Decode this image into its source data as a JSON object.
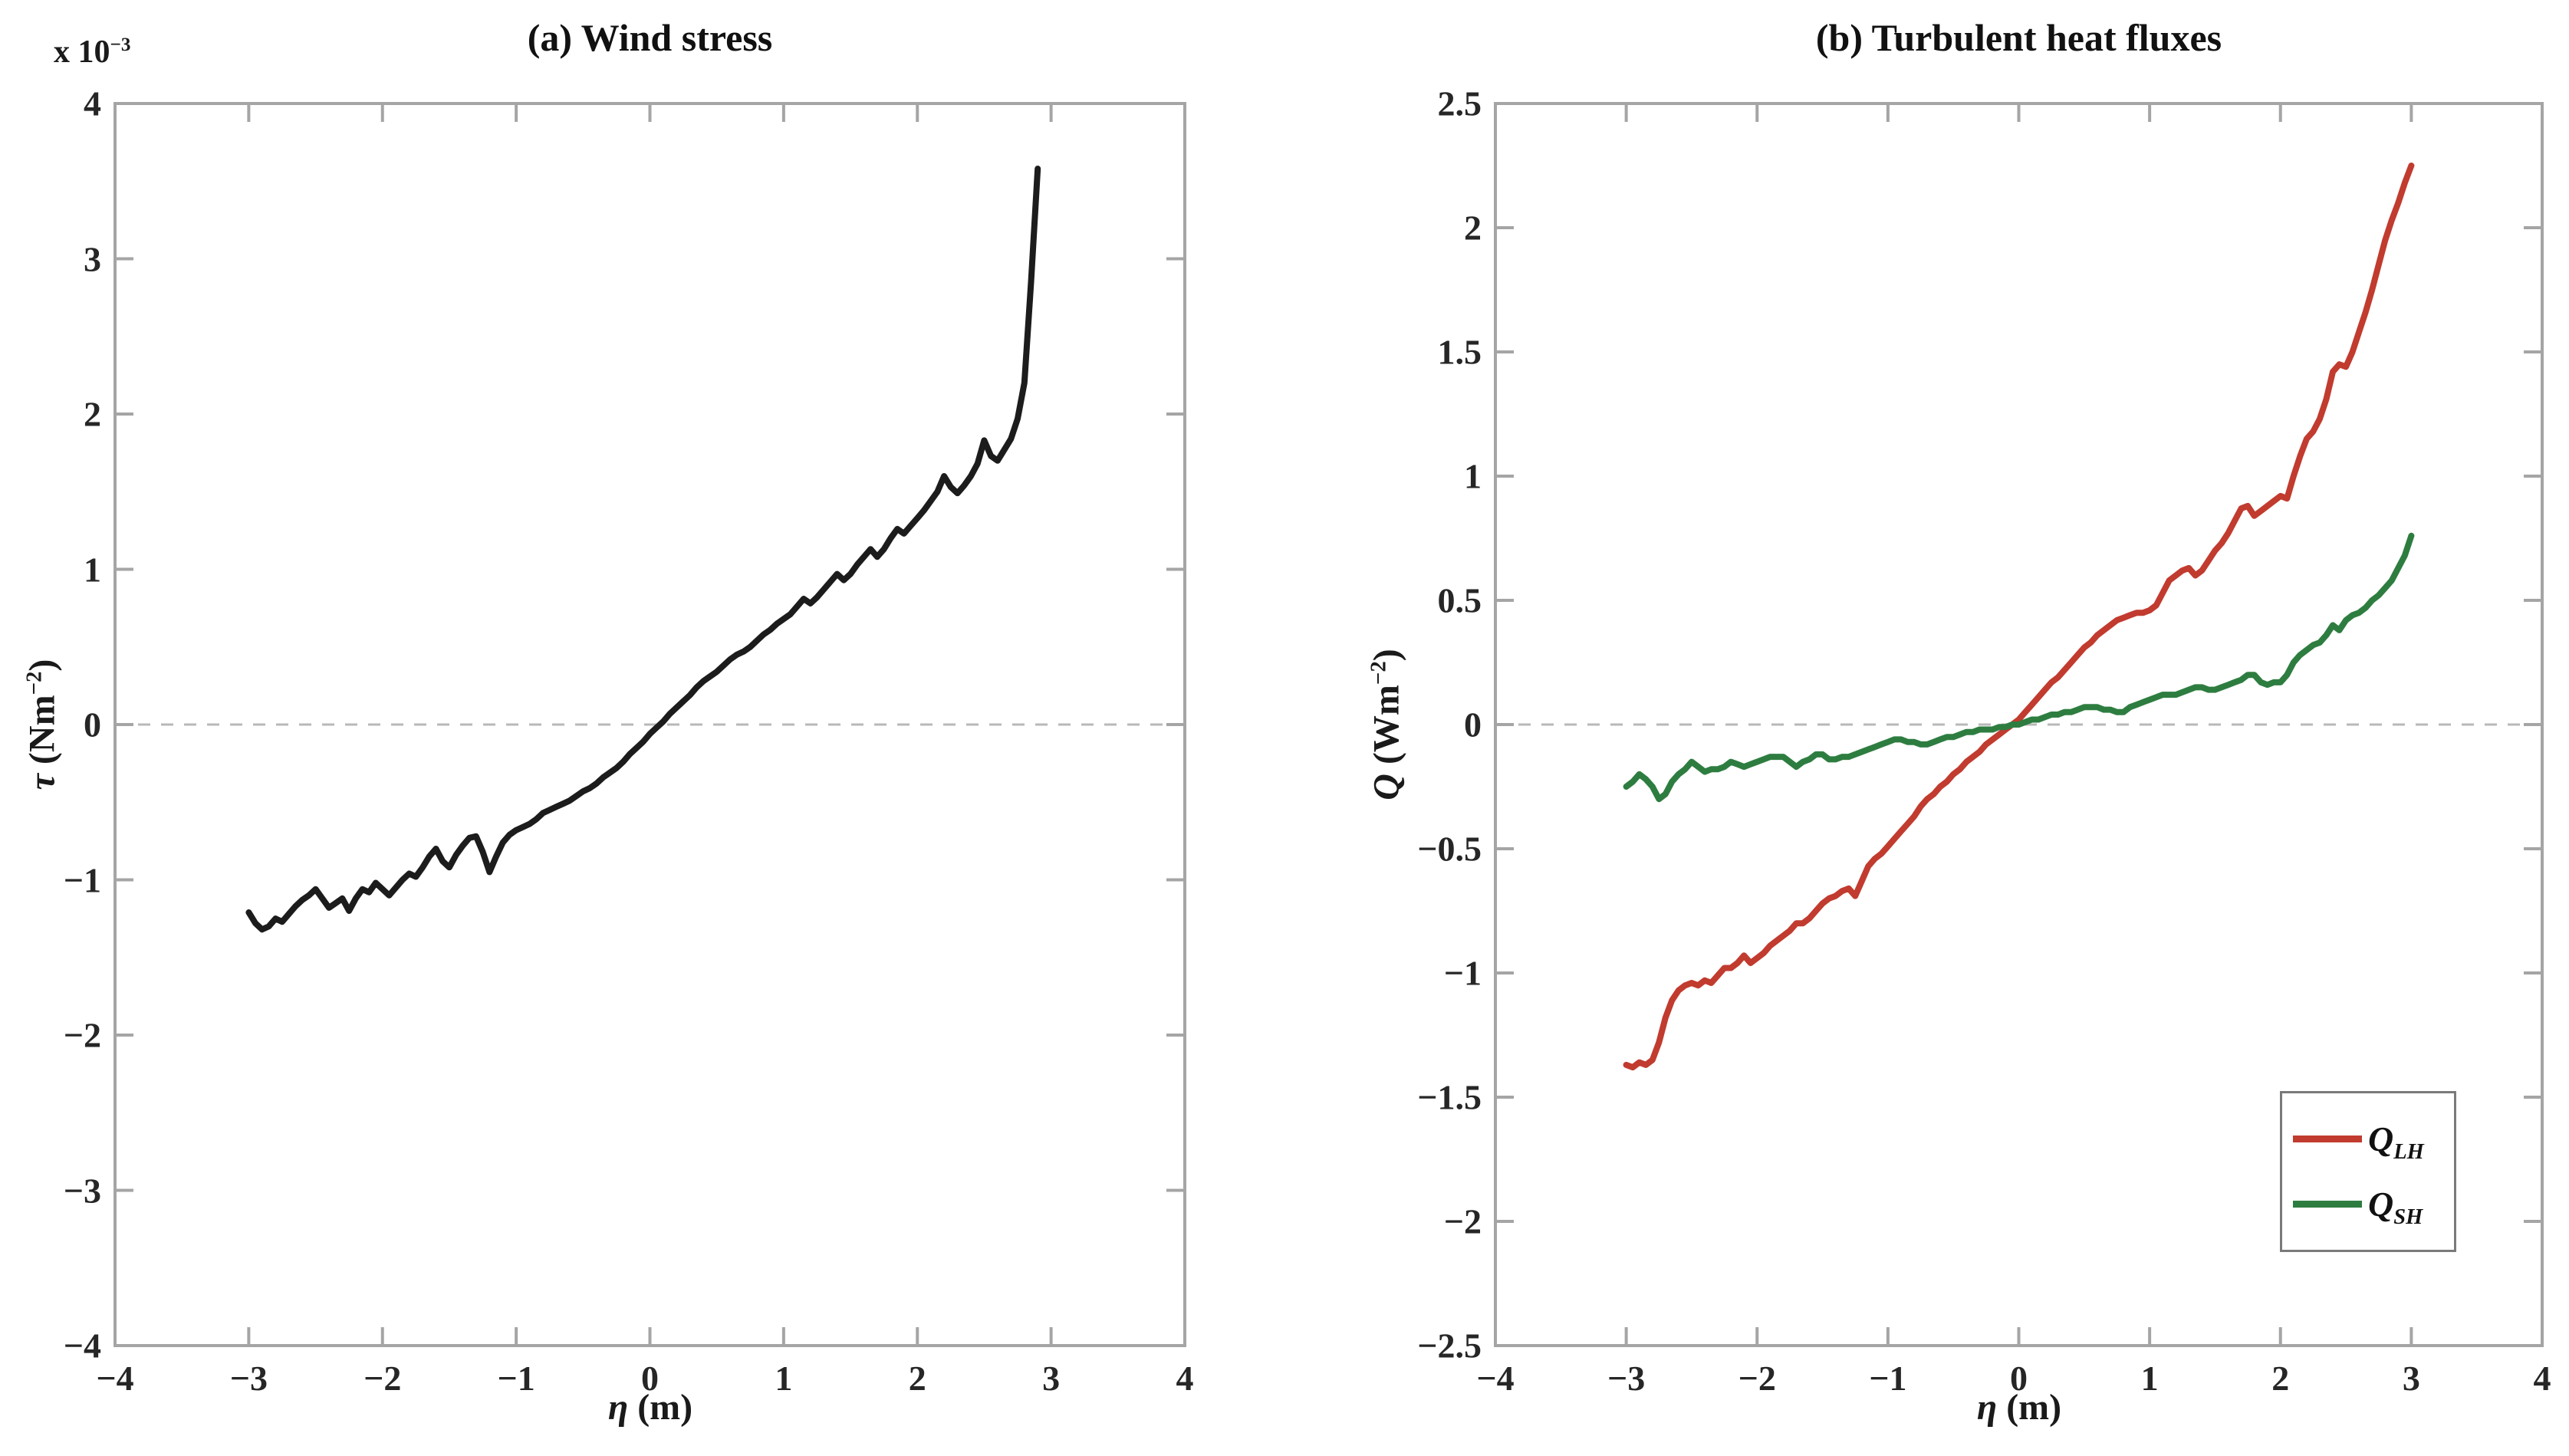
{
  "figure_background": "#ffffff",
  "axis_color": "#a5a5a5",
  "tick_label_color": "#262626",
  "zero_line_color": "#b8b8b8",
  "chart_data": [
    {
      "type": "line",
      "title": "(a) Wind stress",
      "xlabel": {
        "symbol": "η",
        "unit": " (m)"
      },
      "ylabel": {
        "symbol": "τ",
        "unit_pre": " (Nm",
        "unit_sup": "−2",
        "unit_post": ")"
      },
      "y_scale_label": {
        "pre": "x 10",
        "sup": "−3"
      },
      "xlim": [
        -4,
        4
      ],
      "ylim": [
        -4,
        4
      ],
      "grid": false,
      "zero_line": true,
      "xticks": [
        -4,
        -3,
        -2,
        -1,
        0,
        1,
        2,
        3,
        4
      ],
      "xtick_labels": [
        "−4",
        "−3",
        "−2",
        "−1",
        "0",
        "1",
        "2",
        "3",
        "4"
      ],
      "yticks": [
        -4,
        -3,
        -2,
        -1,
        0,
        1,
        2,
        3,
        4
      ],
      "ytick_labels": [
        "−4",
        "−3",
        "−2",
        "−1",
        "0",
        "1",
        "2",
        "3",
        "4"
      ],
      "series": [
        {
          "name": "tau",
          "color": "#1c1c1c",
          "line_width": 8,
          "x_start": -3.0,
          "x_step": 0.05,
          "x_end": 2.9,
          "values": [
            -1.21,
            -1.28,
            -1.32,
            -1.3,
            -1.25,
            -1.27,
            -1.22,
            -1.17,
            -1.13,
            -1.1,
            -1.06,
            -1.12,
            -1.18,
            -1.15,
            -1.12,
            -1.2,
            -1.12,
            -1.06,
            -1.08,
            -1.02,
            -1.06,
            -1.1,
            -1.05,
            -1.0,
            -0.96,
            -0.98,
            -0.92,
            -0.85,
            -0.8,
            -0.88,
            -0.92,
            -0.84,
            -0.78,
            -0.73,
            -0.72,
            -0.82,
            -0.95,
            -0.85,
            -0.76,
            -0.71,
            -0.68,
            -0.66,
            -0.64,
            -0.61,
            -0.57,
            -0.55,
            -0.53,
            -0.51,
            -0.49,
            -0.46,
            -0.43,
            -0.41,
            -0.38,
            -0.34,
            -0.31,
            -0.28,
            -0.24,
            -0.19,
            -0.15,
            -0.11,
            -0.06,
            -0.02,
            0.02,
            0.07,
            0.11,
            0.15,
            0.19,
            0.24,
            0.28,
            0.31,
            0.34,
            0.38,
            0.42,
            0.45,
            0.47,
            0.5,
            0.54,
            0.58,
            0.61,
            0.65,
            0.68,
            0.71,
            0.76,
            0.81,
            0.78,
            0.82,
            0.87,
            0.92,
            0.97,
            0.93,
            0.97,
            1.03,
            1.08,
            1.13,
            1.08,
            1.13,
            1.2,
            1.26,
            1.23,
            1.28,
            1.33,
            1.38,
            1.44,
            1.5,
            1.6,
            1.53,
            1.49,
            1.54,
            1.6,
            1.68,
            1.83,
            1.73,
            1.7,
            1.77,
            1.84,
            1.97,
            2.2,
            2.85,
            3.58
          ]
        }
      ]
    },
    {
      "type": "line",
      "title": "(b) Turbulent heat fluxes",
      "xlabel": {
        "symbol": "η",
        "unit": " (m)"
      },
      "ylabel": {
        "symbol": "Q",
        "unit_pre": " (Wm",
        "unit_sup": "−2",
        "unit_post": ")"
      },
      "xlim": [
        -4,
        4
      ],
      "ylim": [
        -2.5,
        2.5
      ],
      "grid": false,
      "zero_line": true,
      "xticks": [
        -4,
        -3,
        -2,
        -1,
        0,
        1,
        2,
        3,
        4
      ],
      "xtick_labels": [
        "−4",
        "−3",
        "−2",
        "−1",
        "0",
        "1",
        "2",
        "3",
        "4"
      ],
      "yticks": [
        -2.5,
        -2,
        -1.5,
        -1,
        -0.5,
        0,
        0.5,
        1,
        1.5,
        2,
        2.5
      ],
      "ytick_labels": [
        "−2.5",
        "−2",
        "−1.5",
        "−1",
        "−0.5",
        "0",
        "0.5",
        "1",
        "1.5",
        "2",
        "2.5"
      ],
      "legend": {
        "position": "bottom-right",
        "entries": [
          {
            "symbol": "Q",
            "sub": "LH",
            "color": "#c13b2f"
          },
          {
            "symbol": "Q",
            "sub": "SH",
            "color": "#2e7d40"
          }
        ]
      },
      "series": [
        {
          "name": "q-lh",
          "color": "#c13b2f",
          "line_width": 8,
          "x_start": -3.0,
          "x_step": 0.05,
          "x_end": 3.0,
          "values": [
            -1.37,
            -1.38,
            -1.36,
            -1.37,
            -1.35,
            -1.28,
            -1.18,
            -1.11,
            -1.07,
            -1.05,
            -1.04,
            -1.05,
            -1.03,
            -1.04,
            -1.01,
            -0.98,
            -0.98,
            -0.96,
            -0.93,
            -0.96,
            -0.94,
            -0.92,
            -0.89,
            -0.87,
            -0.85,
            -0.83,
            -0.8,
            -0.8,
            -0.78,
            -0.75,
            -0.72,
            -0.7,
            -0.69,
            -0.67,
            -0.66,
            -0.69,
            -0.63,
            -0.57,
            -0.54,
            -0.52,
            -0.49,
            -0.46,
            -0.43,
            -0.4,
            -0.37,
            -0.33,
            -0.3,
            -0.28,
            -0.25,
            -0.23,
            -0.2,
            -0.18,
            -0.15,
            -0.13,
            -0.11,
            -0.08,
            -0.06,
            -0.04,
            -0.02,
            0.0,
            0.02,
            0.05,
            0.08,
            0.11,
            0.14,
            0.17,
            0.19,
            0.22,
            0.25,
            0.28,
            0.31,
            0.33,
            0.36,
            0.38,
            0.4,
            0.42,
            0.43,
            0.44,
            0.45,
            0.45,
            0.46,
            0.48,
            0.53,
            0.58,
            0.6,
            0.62,
            0.63,
            0.6,
            0.62,
            0.66,
            0.7,
            0.73,
            0.77,
            0.82,
            0.87,
            0.88,
            0.84,
            0.86,
            0.88,
            0.9,
            0.92,
            0.91,
            1.0,
            1.08,
            1.15,
            1.18,
            1.23,
            1.31,
            1.42,
            1.45,
            1.44,
            1.5,
            1.58,
            1.66,
            1.75,
            1.85,
            1.95,
            2.03,
            2.1,
            2.18,
            2.25
          ]
        },
        {
          "name": "q-sh",
          "color": "#2e7d40",
          "line_width": 8,
          "x_start": -3.0,
          "x_step": 0.05,
          "x_end": 3.0,
          "values": [
            -0.25,
            -0.23,
            -0.2,
            -0.22,
            -0.25,
            -0.3,
            -0.28,
            -0.23,
            -0.2,
            -0.18,
            -0.15,
            -0.17,
            -0.19,
            -0.18,
            -0.18,
            -0.17,
            -0.15,
            -0.16,
            -0.17,
            -0.16,
            -0.15,
            -0.14,
            -0.13,
            -0.13,
            -0.13,
            -0.15,
            -0.17,
            -0.15,
            -0.14,
            -0.12,
            -0.12,
            -0.14,
            -0.14,
            -0.13,
            -0.13,
            -0.12,
            -0.11,
            -0.1,
            -0.09,
            -0.08,
            -0.07,
            -0.06,
            -0.06,
            -0.07,
            -0.07,
            -0.08,
            -0.08,
            -0.07,
            -0.06,
            -0.05,
            -0.05,
            -0.04,
            -0.03,
            -0.03,
            -0.02,
            -0.02,
            -0.02,
            -0.01,
            -0.01,
            0.0,
            0.0,
            0.01,
            0.02,
            0.02,
            0.03,
            0.04,
            0.04,
            0.05,
            0.05,
            0.06,
            0.07,
            0.07,
            0.07,
            0.06,
            0.06,
            0.05,
            0.05,
            0.07,
            0.08,
            0.09,
            0.1,
            0.11,
            0.12,
            0.12,
            0.12,
            0.13,
            0.14,
            0.15,
            0.15,
            0.14,
            0.14,
            0.15,
            0.16,
            0.17,
            0.18,
            0.2,
            0.2,
            0.17,
            0.16,
            0.17,
            0.17,
            0.2,
            0.25,
            0.28,
            0.3,
            0.32,
            0.33,
            0.36,
            0.4,
            0.38,
            0.42,
            0.44,
            0.45,
            0.47,
            0.5,
            0.52,
            0.55,
            0.58,
            0.63,
            0.68,
            0.76
          ]
        }
      ]
    }
  ]
}
